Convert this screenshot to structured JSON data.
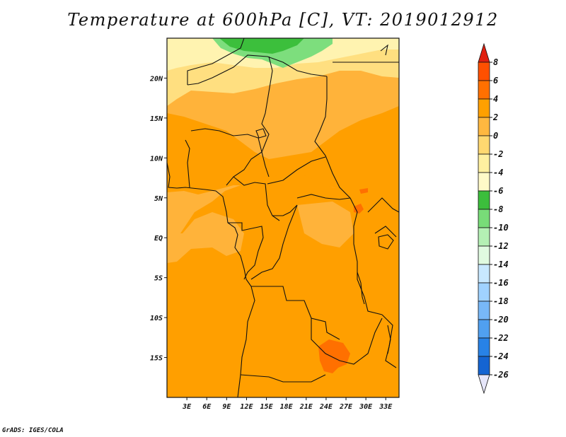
{
  "title": "Temperature at 600hPa [C], VT: 2019012912",
  "credit": "GrADS: IGES/COLA",
  "map": {
    "lon_range": [
      0,
      35
    ],
    "lat_range": [
      -20,
      25
    ],
    "lat_ticks": [
      {
        "value": 20,
        "label": "20N"
      },
      {
        "value": 15,
        "label": "15N"
      },
      {
        "value": 10,
        "label": "10N"
      },
      {
        "value": 5,
        "label": "5N"
      },
      {
        "value": 0,
        "label": "EQ"
      },
      {
        "value": -5,
        "label": "5S"
      },
      {
        "value": -10,
        "label": "10S"
      },
      {
        "value": -15,
        "label": "15S"
      }
    ],
    "lon_ticks": [
      {
        "value": 3,
        "label": "3E"
      },
      {
        "value": 6,
        "label": "6E"
      },
      {
        "value": 9,
        "label": "9E"
      },
      {
        "value": 12,
        "label": "12E"
      },
      {
        "value": 15,
        "label": "15E"
      },
      {
        "value": 18,
        "label": "18E"
      },
      {
        "value": 21,
        "label": "21E"
      },
      {
        "value": 24,
        "label": "24E"
      },
      {
        "value": 27,
        "label": "27E"
      },
      {
        "value": 30,
        "label": "30E"
      },
      {
        "value": 33,
        "label": "33E"
      }
    ]
  },
  "colorbar": {
    "levels": [
      "8",
      "6",
      "4",
      "2",
      "0",
      "-2",
      "-4",
      "-6",
      "-8",
      "-10",
      "-12",
      "-14",
      "-16",
      "-18",
      "-20",
      "-22",
      "-24",
      "-26"
    ],
    "colors": [
      "#ff2000",
      "#ff5000",
      "#ff7000",
      "#ffa000",
      "#ffb840",
      "#ffd870",
      "#fff0a0",
      "#fffac8",
      "#3cbe3c",
      "#78dc78",
      "#b4f0b4",
      "#e0fae0",
      "#c8e8ff",
      "#a0d2ff",
      "#78b8f8",
      "#50a0f0",
      "#2882e6",
      "#1464d2",
      "#0a3cb4"
    ],
    "top_color": "#e02010",
    "bottom_color": "#e6e6fa"
  },
  "fill_colors": {
    "ocean_warm": "#ff9f00",
    "land_warm": "#ffb33a",
    "yellow": "#ffdf80",
    "pale": "#fff3b0",
    "green": "#3cbf3c",
    "lightgreen": "#7dde7d",
    "hot": "#ff7000"
  }
}
